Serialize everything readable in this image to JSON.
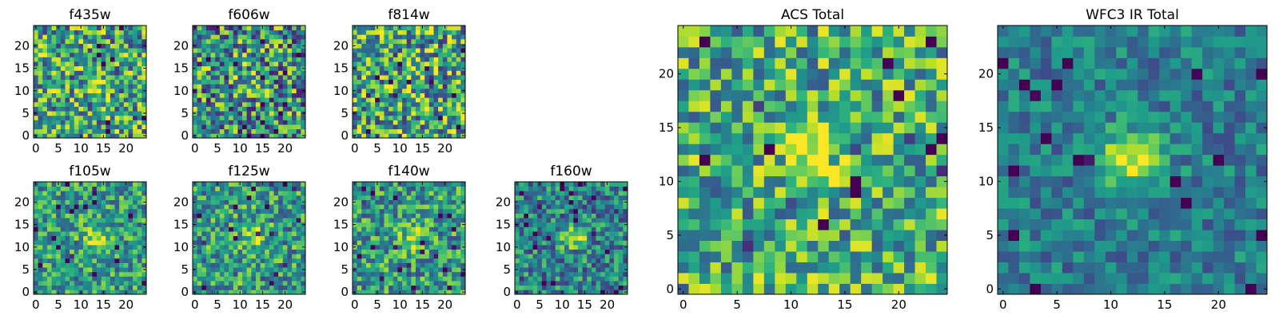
{
  "figure": {
    "description_free": true
  },
  "chart_data": [
    {
      "type": "heatmap",
      "title": "f435w",
      "colormap": "viridis",
      "pixels": [
        25,
        25
      ],
      "xlim": [
        0,
        24
      ],
      "ylim": [
        0,
        24
      ],
      "xticks": [
        "0",
        "5",
        "10",
        "15",
        "20"
      ],
      "yticks": [
        "0",
        "5",
        "10",
        "15",
        "20"
      ],
      "source_center": [
        13,
        12
      ],
      "peak_strength": 0.18,
      "noise_level": 0.42,
      "base_level": 0.58,
      "seed": 435
    },
    {
      "type": "heatmap",
      "title": "f606w",
      "colormap": "viridis",
      "pixels": [
        25,
        25
      ],
      "xlim": [
        0,
        24
      ],
      "ylim": [
        0,
        24
      ],
      "xticks": [
        "0",
        "5",
        "10",
        "15",
        "20"
      ],
      "yticks": [
        "0",
        "5",
        "10",
        "15",
        "20"
      ],
      "source_center": [
        12,
        12
      ],
      "peak_strength": 0.22,
      "noise_level": 0.45,
      "base_level": 0.52,
      "seed": 606
    },
    {
      "type": "heatmap",
      "title": "f814w",
      "colormap": "viridis",
      "pixels": [
        25,
        25
      ],
      "xlim": [
        0,
        24
      ],
      "ylim": [
        0,
        24
      ],
      "xticks": [
        "0",
        "5",
        "10",
        "15",
        "20"
      ],
      "yticks": [
        "0",
        "5",
        "10",
        "15",
        "20"
      ],
      "source_center": [
        13,
        12
      ],
      "peak_strength": 0.18,
      "noise_level": 0.45,
      "base_level": 0.6,
      "seed": 814
    },
    {
      "type": "heatmap",
      "title": "f105w",
      "colormap": "viridis",
      "pixels": [
        25,
        25
      ],
      "xlim": [
        0,
        24
      ],
      "ylim": [
        0,
        24
      ],
      "xticks": [
        "0",
        "5",
        "10",
        "15",
        "20"
      ],
      "yticks": [
        "0",
        "5",
        "10",
        "15",
        "20"
      ],
      "source_center": [
        13,
        12
      ],
      "peak_strength": 0.35,
      "noise_level": 0.3,
      "base_level": 0.55,
      "seed": 105
    },
    {
      "type": "heatmap",
      "title": "f125w",
      "colormap": "viridis",
      "pixels": [
        25,
        25
      ],
      "xlim": [
        0,
        24
      ],
      "ylim": [
        0,
        24
      ],
      "xticks": [
        "0",
        "5",
        "10",
        "15",
        "20"
      ],
      "yticks": [
        "0",
        "5",
        "10",
        "15",
        "20"
      ],
      "source_center": [
        13,
        12
      ],
      "peak_strength": 0.3,
      "noise_level": 0.32,
      "base_level": 0.55,
      "seed": 125
    },
    {
      "type": "heatmap",
      "title": "f140w",
      "colormap": "viridis",
      "pixels": [
        25,
        25
      ],
      "xlim": [
        0,
        24
      ],
      "ylim": [
        0,
        24
      ],
      "xticks": [
        "0",
        "5",
        "10",
        "15",
        "20"
      ],
      "yticks": [
        "0",
        "5",
        "10",
        "15",
        "20"
      ],
      "source_center": [
        13,
        12
      ],
      "peak_strength": 0.32,
      "noise_level": 0.32,
      "base_level": 0.55,
      "seed": 140
    },
    {
      "type": "heatmap",
      "title": "f160w",
      "colormap": "viridis",
      "pixels": [
        25,
        25
      ],
      "xlim": [
        0,
        24
      ],
      "ylim": [
        0,
        24
      ],
      "xticks": [
        "0",
        "5",
        "10",
        "15",
        "20"
      ],
      "yticks": [
        "0",
        "5",
        "10",
        "15",
        "20"
      ],
      "source_center": [
        13,
        12
      ],
      "peak_strength": 0.4,
      "noise_level": 0.3,
      "base_level": 0.45,
      "seed": 160
    },
    {
      "type": "heatmap",
      "title": "ACS Total",
      "colormap": "viridis",
      "pixels": [
        25,
        25
      ],
      "xlim": [
        0,
        24
      ],
      "ylim": [
        0,
        24
      ],
      "xticks": [
        "0",
        "5",
        "10",
        "15",
        "20"
      ],
      "yticks": [
        "0",
        "5",
        "10",
        "15",
        "20"
      ],
      "source_center": [
        12,
        12
      ],
      "peak_strength": 0.3,
      "noise_level": 0.35,
      "base_level": 0.62,
      "seed": 2001
    },
    {
      "type": "heatmap",
      "title": "WFC3 IR Total",
      "colormap": "viridis",
      "pixels": [
        25,
        25
      ],
      "xlim": [
        0,
        24
      ],
      "ylim": [
        0,
        24
      ],
      "xticks": [
        "0",
        "5",
        "10",
        "15",
        "20"
      ],
      "yticks": [
        "0",
        "5",
        "10",
        "15",
        "20"
      ],
      "source_center": [
        12,
        12
      ],
      "peak_strength": 0.55,
      "noise_level": 0.2,
      "base_level": 0.42,
      "seed": 3001
    }
  ]
}
